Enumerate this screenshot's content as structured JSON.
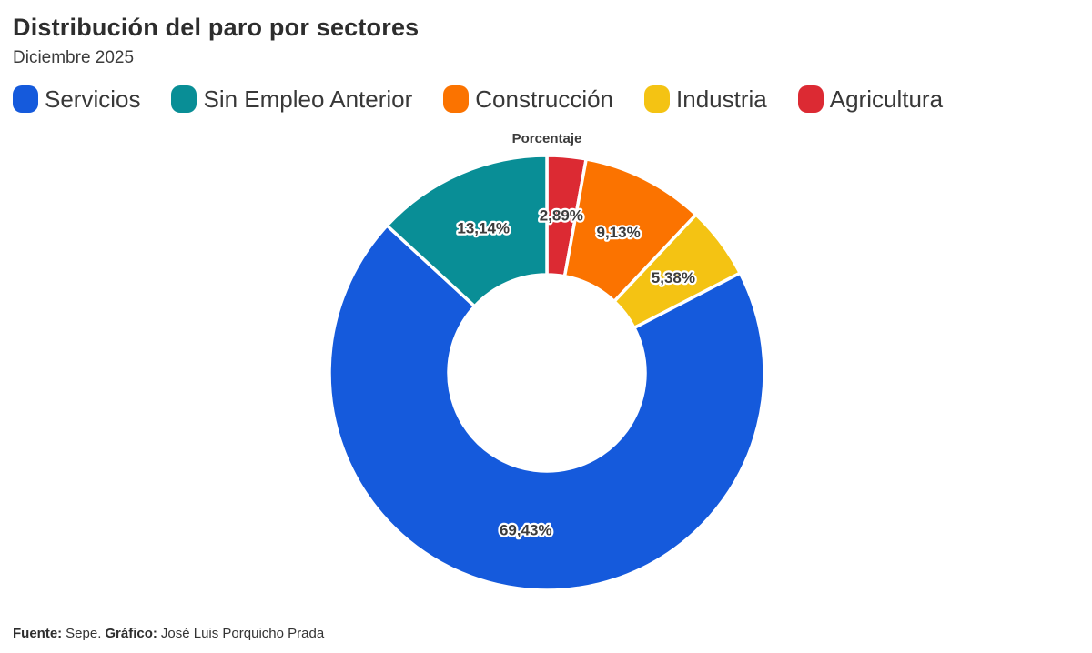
{
  "header": {
    "title": "Distribución del paro por sectores",
    "subtitle": "Diciembre 2025"
  },
  "chart_data": {
    "type": "pie",
    "subtype": "donut",
    "axis_title": "Porcentaje",
    "unit": "%",
    "decimal_separator": ",",
    "legend_position": "top",
    "start_angle_deg": 0,
    "direction": "clockwise",
    "inner_radius_ratio": 0.45,
    "draw_order": [
      "Agricultura",
      "Construcción",
      "Industria",
      "Servicios",
      "Sin Empleo Anterior"
    ],
    "slices": [
      {
        "name": "Servicios",
        "value": 69.43,
        "label": "69,43%",
        "color": "#155adc"
      },
      {
        "name": "Sin Empleo Anterior",
        "value": 13.14,
        "label": "13,14%",
        "color": "#098e96"
      },
      {
        "name": "Construcción",
        "value": 9.13,
        "label": "9,13%",
        "color": "#fb7300"
      },
      {
        "name": "Industria",
        "value": 5.38,
        "label": "5,38%",
        "color": "#f4c313"
      },
      {
        "name": "Agricultura",
        "value": 2.89,
        "label": "2,89%",
        "color": "#dc2a33"
      }
    ]
  },
  "footer": {
    "source_label": "Fuente:",
    "source_text": "Sepe.",
    "credit_label": "Gráfico:",
    "credit_text": "José Luis Porquicho Prada"
  }
}
